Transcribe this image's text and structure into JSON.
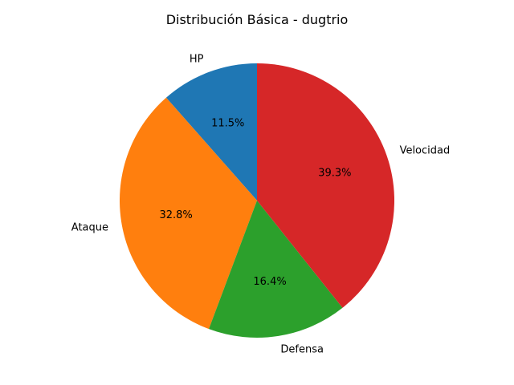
{
  "chart_data": {
    "type": "pie",
    "title": "Distribución Básica - dugtrio",
    "categories": [
      "HP",
      "Ataque",
      "Defensa",
      "Velocidad"
    ],
    "values": [
      11.5,
      32.8,
      16.4,
      39.3
    ],
    "value_labels": [
      "11.5%",
      "32.8%",
      "16.4%",
      "39.3%"
    ],
    "colors": [
      "#1f77b4",
      "#ff7f0e",
      "#2ca02c",
      "#d62728"
    ],
    "start_angle_deg": 90,
    "direction": "counterclockwise",
    "legend": "none"
  }
}
